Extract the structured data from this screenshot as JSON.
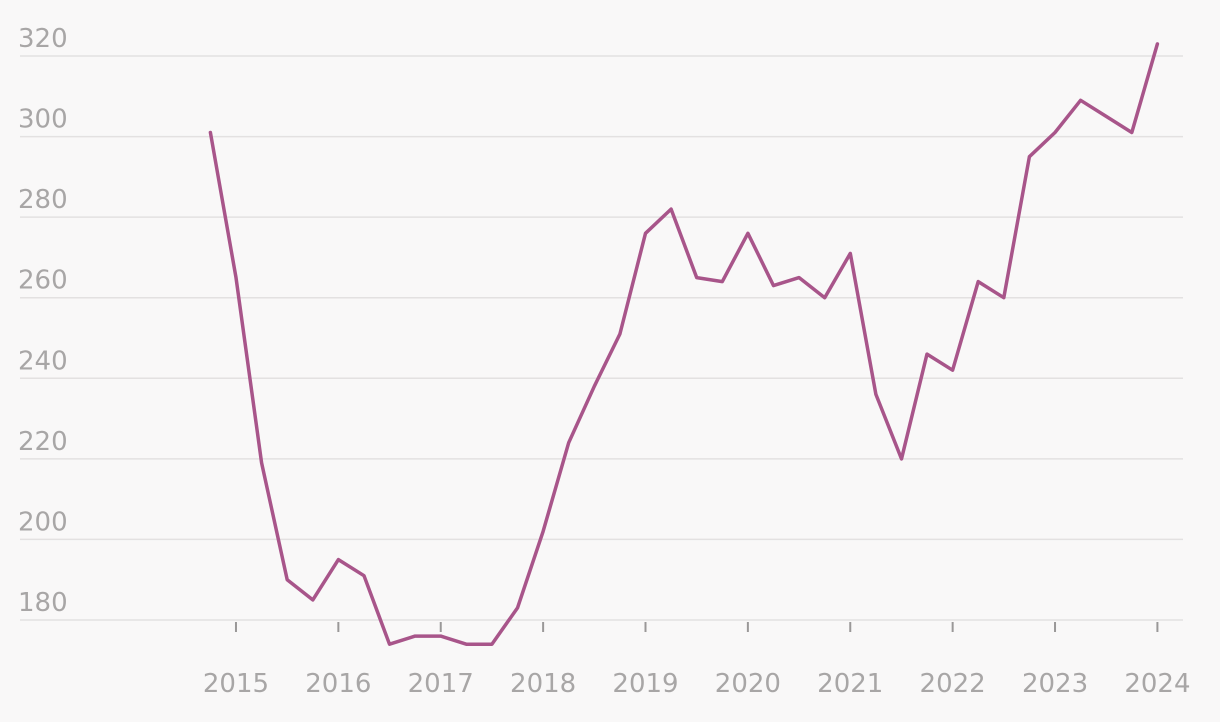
{
  "chart_data": {
    "type": "line",
    "title": "",
    "xlabel": "",
    "ylabel": "",
    "x_tick_labels": [
      "2015",
      "2016",
      "2017",
      "2018",
      "2019",
      "2020",
      "2021",
      "2022",
      "2023",
      "2024"
    ],
    "y_tick_labels": [
      "180",
      "200",
      "220",
      "240",
      "260",
      "280",
      "300",
      "320"
    ],
    "xlim": [
      2013.75,
      2024.25
    ],
    "ylim": [
      173,
      325
    ],
    "grid": true,
    "legend": "none",
    "colors": {
      "series": "#a8558a",
      "grid": "#e3e1e1",
      "tick_text": "#a8a6a6",
      "background": "#f9f8f8"
    },
    "series": [
      {
        "x": [
          2014.75,
          2015.0,
          2015.25,
          2015.5,
          2015.75,
          2016.0,
          2016.25,
          2016.5,
          2016.75,
          2017.0,
          2017.25,
          2017.5,
          2017.75,
          2018.0,
          2018.25,
          2018.5,
          2018.75,
          2019.0,
          2019.25,
          2019.5,
          2019.75,
          2020.0,
          2020.25,
          2020.5,
          2020.75,
          2021.0,
          2021.25,
          2021.5,
          2021.75,
          2022.0,
          2022.25,
          2022.5,
          2022.75,
          2023.0,
          2023.25,
          2023.5,
          2023.75,
          2024.0
        ],
        "values": [
          301,
          265,
          219,
          190,
          185,
          195,
          191,
          174,
          176,
          176,
          174,
          174,
          183,
          202,
          224,
          238,
          251,
          276,
          282,
          265,
          264,
          276,
          263,
          265,
          260,
          271,
          236,
          220,
          246,
          242,
          264,
          260,
          295,
          301,
          309,
          305,
          301,
          323
        ]
      }
    ]
  }
}
